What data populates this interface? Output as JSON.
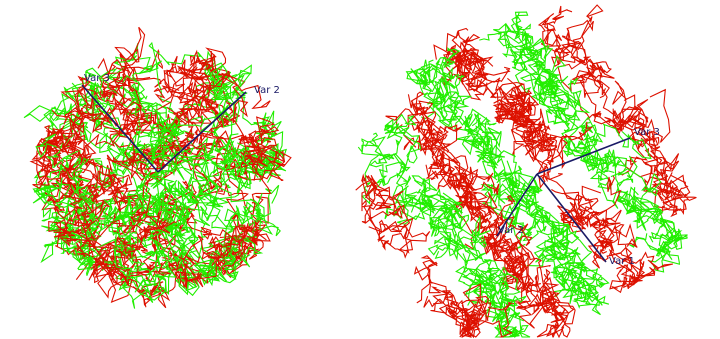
{
  "chart_data": [
    {
      "type": "scatter",
      "title": "",
      "series": [
        {
          "color": "#dd1100"
        },
        {
          "color": "#22ee00"
        }
      ],
      "axes": [
        {
          "label": "Var 3"
        },
        {
          "label": "Var 2"
        }
      ],
      "grid": false,
      "legend": "none"
    },
    {
      "type": "scatter",
      "title": "",
      "series": [
        {
          "color": "#dd1100"
        },
        {
          "color": "#22ee00"
        }
      ],
      "axes": [
        {
          "label": "Var 3"
        },
        {
          "label": "Var 2"
        },
        {
          "label": "Var 1"
        }
      ],
      "grid": false,
      "legend": "none"
    }
  ]
}
